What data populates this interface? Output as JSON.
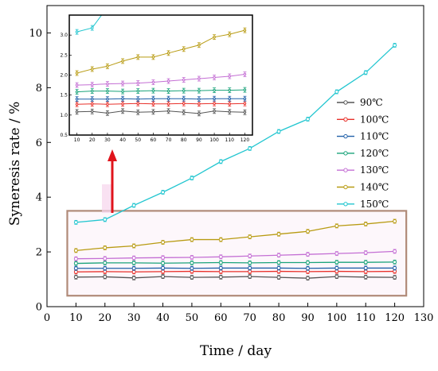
{
  "chart_data": {
    "type": "line",
    "xlabel": "Time / day",
    "ylabel": "Syneresis rate / %",
    "xlim": [
      0,
      130
    ],
    "ylim": [
      0,
      11
    ],
    "xticks": [
      0,
      10,
      20,
      30,
      40,
      50,
      60,
      70,
      80,
      90,
      100,
      110,
      120,
      130
    ],
    "xtick_labels": [
      "0",
      "10",
      "20",
      "30",
      "40",
      "50",
      "60",
      "70",
      "80",
      "90",
      "100",
      "110",
      "120",
      "130"
    ],
    "yticks": [
      0,
      2,
      4,
      6,
      8,
      10
    ],
    "ytick_labels": [
      "0",
      "2",
      "4",
      "6",
      "8",
      "10"
    ],
    "legend_position": "right",
    "x": [
      10,
      20,
      30,
      40,
      50,
      60,
      70,
      80,
      90,
      100,
      110,
      120
    ],
    "series": [
      {
        "name": "90℃",
        "color": "#555555",
        "values": [
          1.08,
          1.09,
          1.05,
          1.1,
          1.07,
          1.08,
          1.1,
          1.07,
          1.04,
          1.1,
          1.08,
          1.07
        ]
      },
      {
        "name": "100℃",
        "color": "#e8302a",
        "values": [
          1.27,
          1.28,
          1.27,
          1.28,
          1.29,
          1.28,
          1.28,
          1.29,
          1.28,
          1.29,
          1.28,
          1.29
        ]
      },
      {
        "name": "110℃",
        "color": "#1f5fa8",
        "values": [
          1.4,
          1.4,
          1.4,
          1.41,
          1.4,
          1.41,
          1.41,
          1.41,
          1.4,
          1.41,
          1.41,
          1.41
        ]
      },
      {
        "name": "120℃",
        "color": "#1aa37a",
        "values": [
          1.58,
          1.6,
          1.6,
          1.59,
          1.6,
          1.61,
          1.6,
          1.61,
          1.61,
          1.62,
          1.62,
          1.63
        ]
      },
      {
        "name": "130℃",
        "color": "#c46fd4",
        "values": [
          1.75,
          1.76,
          1.78,
          1.79,
          1.8,
          1.82,
          1.85,
          1.88,
          1.91,
          1.94,
          1.97,
          2.02
        ]
      },
      {
        "name": "140℃",
        "color": "#b89b12",
        "values": [
          2.05,
          2.15,
          2.22,
          2.35,
          2.45,
          2.45,
          2.55,
          2.65,
          2.75,
          2.95,
          3.02,
          3.12
        ]
      },
      {
        "name": "150℃",
        "color": "#22c6d0",
        "values": [
          3.08,
          3.18,
          3.7,
          4.18,
          4.7,
          5.3,
          5.78,
          6.4,
          6.85,
          7.85,
          8.55,
          9.55
        ]
      }
    ],
    "inset": {
      "xlim": [
        5,
        125
      ],
      "ylim": [
        0.5,
        3.5
      ],
      "xticks": [
        10,
        20,
        30,
        40,
        50,
        60,
        70,
        80,
        90,
        100,
        110,
        120
      ],
      "xtick_labels": [
        "10",
        "20",
        "30",
        "40",
        "50",
        "60",
        "70",
        "80",
        "90",
        "100",
        "110",
        "120"
      ],
      "yticks": [
        0.5,
        1.0,
        1.5,
        2.0,
        2.5,
        3.0
      ],
      "ytick_labels": [
        "0.5",
        "1.0",
        "1.5",
        "2.0",
        "2.5",
        "3.0"
      ]
    },
    "zoom_box": {
      "x": [
        7,
        124
      ],
      "y": [
        0.4,
        3.5
      ]
    },
    "arrow_color": "#e0141c",
    "zoom_box_color": "#b08a78"
  }
}
